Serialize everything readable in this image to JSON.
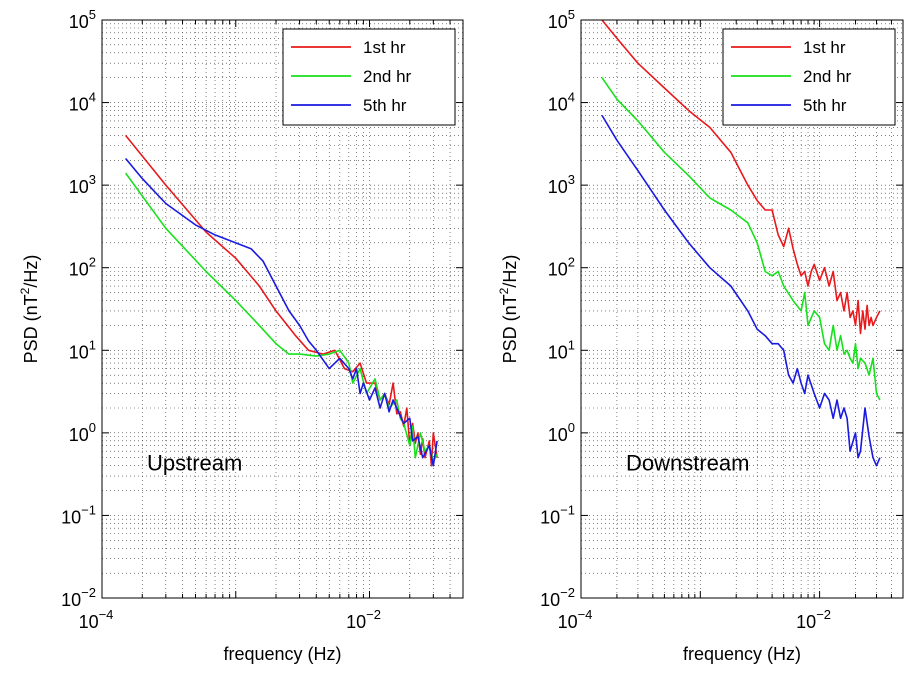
{
  "chart_data": [
    {
      "type": "line",
      "annotation": "Upstream",
      "xlabel": "frequency (Hz)",
      "ylabel": "PSD (nT²/Hz)",
      "ylabel_base": "PSD (nT",
      "ylabel_sup": "2",
      "ylabel_tail": "/Hz)",
      "xscale": "log",
      "yscale": "log",
      "xlim": [
        0.0001,
        0.05
      ],
      "ylim": [
        0.01,
        100000
      ],
      "xticks": [
        {
          "base": "10",
          "exp": "−4"
        },
        {
          "base": "10",
          "exp": "−2"
        }
      ],
      "yticks": [
        {
          "base": "10",
          "exp": "5"
        },
        {
          "base": "10",
          "exp": "4"
        },
        {
          "base": "10",
          "exp": "3"
        },
        {
          "base": "10",
          "exp": "2"
        },
        {
          "base": "10",
          "exp": "1"
        },
        {
          "base": "10",
          "exp": "0"
        },
        {
          "base": "10",
          "exp": "−1"
        },
        {
          "base": "10",
          "exp": "−2"
        }
      ],
      "grid": true,
      "legend_position": "top-right",
      "series": [
        {
          "name": "1st hr",
          "color": "#e8191c",
          "x": [
            0.00015,
            0.0003,
            0.0006,
            0.001,
            0.0015,
            0.002,
            0.0028,
            0.0035,
            0.0045,
            0.0055,
            0.0065,
            0.0075,
            0.0085,
            0.0095,
            0.011,
            0.012,
            0.013,
            0.014,
            0.015,
            0.016,
            0.017,
            0.018,
            0.019,
            0.02,
            0.021,
            0.022,
            0.023,
            0.024,
            0.025,
            0.026,
            0.028,
            0.029,
            0.03,
            0.032
          ],
          "y": [
            4000,
            1000,
            270,
            130,
            60,
            30,
            15,
            10,
            9,
            10,
            6,
            5.5,
            7,
            4,
            4,
            2.5,
            3,
            2.2,
            4,
            1.7,
            1.8,
            1.2,
            2,
            0.7,
            1.3,
            0.75,
            1,
            0.55,
            0.85,
            0.5,
            0.8,
            0.4,
            1,
            0.5
          ]
        },
        {
          "name": "2nd hr",
          "color": "#19e01c",
          "x": [
            0.00015,
            0.0003,
            0.0006,
            0.001,
            0.0015,
            0.002,
            0.0025,
            0.003,
            0.004,
            0.005,
            0.006,
            0.007,
            0.0075,
            0.0085,
            0.0095,
            0.011,
            0.012,
            0.013,
            0.014,
            0.016,
            0.017,
            0.018,
            0.02,
            0.021,
            0.022,
            0.024,
            0.026,
            0.028,
            0.03,
            0.032
          ],
          "y": [
            1400,
            300,
            90,
            40,
            20,
            12,
            9,
            9,
            8.5,
            9,
            10,
            7,
            4,
            6,
            3,
            4.5,
            2.5,
            3,
            2,
            2.5,
            1.5,
            1.3,
            0.7,
            1.2,
            0.5,
            1,
            0.6,
            0.7,
            0.45,
            0.55
          ]
        },
        {
          "name": "5th hr",
          "color": "#1a1ae0",
          "x": [
            0.00015,
            0.0002,
            0.0003,
            0.0005,
            0.0007,
            0.001,
            0.0013,
            0.0016,
            0.002,
            0.0025,
            0.003,
            0.0035,
            0.004,
            0.005,
            0.006,
            0.007,
            0.0075,
            0.008,
            0.0085,
            0.009,
            0.01,
            0.011,
            0.012,
            0.013,
            0.014,
            0.015,
            0.017,
            0.018,
            0.02,
            0.021,
            0.023,
            0.025,
            0.028,
            0.03,
            0.032
          ],
          "y": [
            2100,
            1200,
            600,
            330,
            250,
            200,
            170,
            120,
            60,
            30,
            20,
            13,
            10,
            6,
            8,
            6,
            4.5,
            6,
            3,
            4,
            2.5,
            3.5,
            2,
            3,
            1.8,
            2.5,
            1.6,
            1.3,
            1.5,
            0.8,
            0.9,
            0.5,
            0.7,
            0.4,
            0.8
          ]
        }
      ]
    },
    {
      "type": "line",
      "annotation": "Downstream",
      "xlabel": "frequency (Hz)",
      "ylabel": "PSD (nT²/Hz)",
      "ylabel_base": "PSD (nT",
      "ylabel_sup": "2",
      "ylabel_tail": "/Hz)",
      "xscale": "log",
      "yscale": "log",
      "xlim": [
        0.0001,
        0.05
      ],
      "ylim": [
        0.01,
        100000
      ],
      "xticks": [
        {
          "base": "10",
          "exp": "−4"
        },
        {
          "base": "10",
          "exp": "−2"
        }
      ],
      "yticks": [
        {
          "base": "10",
          "exp": "5"
        },
        {
          "base": "10",
          "exp": "4"
        },
        {
          "base": "10",
          "exp": "3"
        },
        {
          "base": "10",
          "exp": "2"
        },
        {
          "base": "10",
          "exp": "1"
        },
        {
          "base": "10",
          "exp": "0"
        },
        {
          "base": "10",
          "exp": "−1"
        },
        {
          "base": "10",
          "exp": "−2"
        }
      ],
      "grid": true,
      "legend_position": "top-right",
      "series": [
        {
          "name": "1st hr",
          "color": "#e8191c",
          "x": [
            0.00015,
            0.0002,
            0.0003,
            0.0005,
            0.0008,
            0.0012,
            0.0018,
            0.0025,
            0.003,
            0.0035,
            0.004,
            0.0045,
            0.005,
            0.0055,
            0.006,
            0.0065,
            0.007,
            0.0075,
            0.008,
            0.0085,
            0.009,
            0.01,
            0.011,
            0.012,
            0.013,
            0.014,
            0.015,
            0.016,
            0.017,
            0.018,
            0.019,
            0.02,
            0.021,
            0.022,
            0.023,
            0.024,
            0.025,
            0.026,
            0.027,
            0.028,
            0.03,
            0.032
          ],
          "y": [
            100000,
            60000,
            30000,
            15000,
            8000,
            5000,
            2500,
            1000,
            650,
            500,
            500,
            250,
            180,
            300,
            170,
            110,
            80,
            90,
            60,
            90,
            110,
            70,
            100,
            60,
            90,
            40,
            50,
            30,
            50,
            25,
            30,
            20,
            40,
            16,
            30,
            18,
            35,
            20,
            25,
            20,
            25,
            30
          ]
        },
        {
          "name": "2nd hr",
          "color": "#19e01c",
          "x": [
            0.00015,
            0.0002,
            0.0003,
            0.0005,
            0.0008,
            0.0012,
            0.0018,
            0.0025,
            0.003,
            0.0035,
            0.004,
            0.0045,
            0.005,
            0.006,
            0.007,
            0.0075,
            0.008,
            0.009,
            0.01,
            0.011,
            0.012,
            0.013,
            0.014,
            0.015,
            0.016,
            0.017,
            0.018,
            0.019,
            0.02,
            0.021,
            0.022,
            0.024,
            0.026,
            0.028,
            0.03,
            0.032
          ],
          "y": [
            20000,
            11000,
            6000,
            2500,
            1300,
            700,
            500,
            350,
            200,
            90,
            80,
            90,
            60,
            40,
            30,
            50,
            20,
            30,
            25,
            12,
            10,
            20,
            10,
            15,
            9,
            10,
            8,
            7,
            12,
            6,
            8,
            7,
            5,
            8,
            3,
            2.5
          ]
        },
        {
          "name": "5th hr",
          "color": "#1a1ae0",
          "x": [
            0.00015,
            0.0002,
            0.0003,
            0.0005,
            0.0008,
            0.0012,
            0.0018,
            0.0025,
            0.003,
            0.0035,
            0.004,
            0.0045,
            0.005,
            0.0055,
            0.006,
            0.0065,
            0.007,
            0.0075,
            0.008,
            0.009,
            0.01,
            0.011,
            0.012,
            0.013,
            0.014,
            0.015,
            0.016,
            0.017,
            0.018,
            0.02,
            0.021,
            0.022,
            0.024,
            0.026,
            0.028,
            0.03,
            0.032
          ],
          "y": [
            7000,
            3500,
            1500,
            500,
            200,
            100,
            60,
            30,
            18,
            15,
            12,
            12,
            10,
            5,
            4,
            6,
            4,
            3,
            5,
            3,
            2,
            3,
            2.5,
            1.5,
            2.5,
            1.5,
            2,
            1.5,
            0.6,
            1,
            0.5,
            0.6,
            2,
            0.9,
            0.5,
            0.4,
            0.5
          ]
        }
      ]
    }
  ]
}
